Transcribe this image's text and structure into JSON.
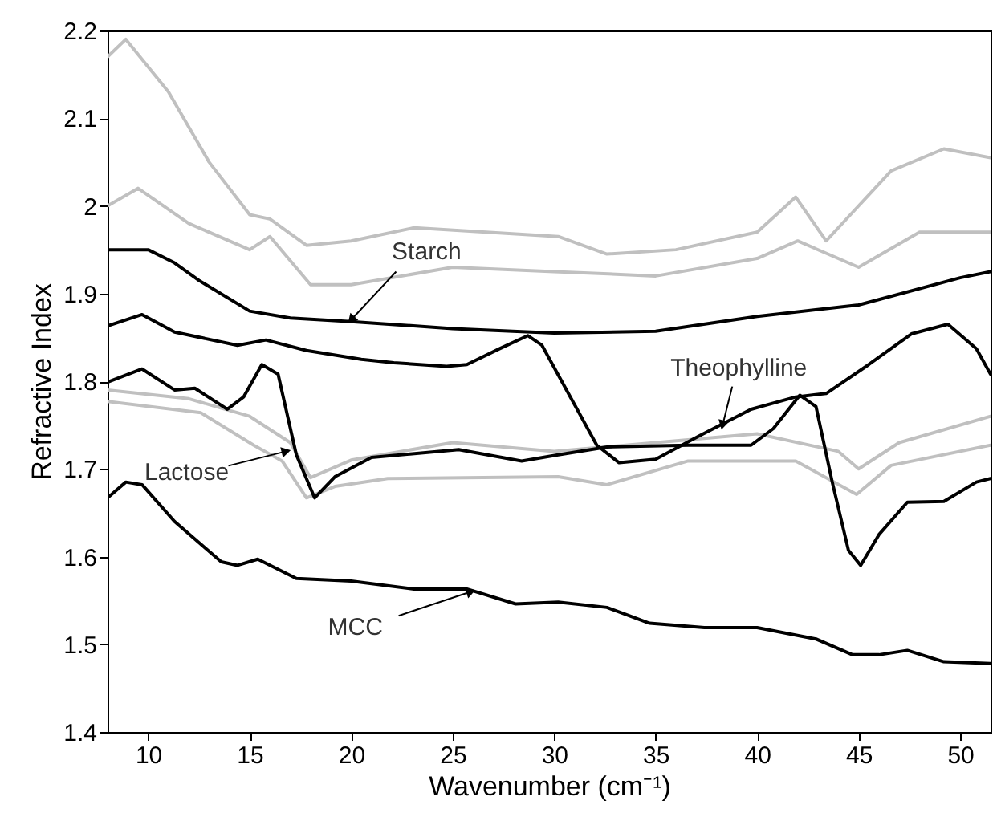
{
  "chart_data": {
    "type": "line",
    "xlabel": "Wavenumber (cm⁻¹)",
    "ylabel": "Refractive Index",
    "xlim": [
      8,
      51.5
    ],
    "ylim": [
      1.4,
      2.2
    ],
    "xticks": [
      10,
      15,
      20,
      25,
      30,
      35,
      40,
      45,
      50
    ],
    "yticks": [
      1.4,
      1.5,
      1.6,
      1.7,
      1.8,
      1.9,
      2,
      2.1,
      2.2
    ],
    "grid": false,
    "line_style": "solid",
    "marker": "none",
    "series": [
      {
        "color": "#c0c0c0",
        "x": [
          8,
          8.9,
          11,
          13,
          15,
          16,
          17.8,
          20,
          23.1,
          30.2,
          32.6,
          36,
          40,
          41.9,
          43.4,
          45,
          46.6,
          49.2,
          51.5
        ],
        "values": [
          2.17,
          2.19,
          2.13,
          2.05,
          1.99,
          1.985,
          1.955,
          1.96,
          1.975,
          1.965,
          1.945,
          1.95,
          1.97,
          2.01,
          1.96,
          2.0,
          2.04,
          2.065,
          2.055
        ]
      },
      {
        "color": "#c0c0c0",
        "x": [
          8,
          9.5,
          12,
          15,
          16,
          18,
          20,
          25,
          30,
          35,
          40,
          42,
          45,
          48,
          51.5
        ],
        "values": [
          2.0,
          2.02,
          1.98,
          1.95,
          1.965,
          1.91,
          1.91,
          1.93,
          1.925,
          1.92,
          1.94,
          1.96,
          1.93,
          1.97,
          1.97
        ]
      },
      {
        "color": "#c0c0c0",
        "x": [
          8,
          12,
          15,
          17,
          18,
          20,
          25,
          30,
          35,
          40,
          44,
          45,
          47,
          51.5
        ],
        "values": [
          1.79,
          1.78,
          1.76,
          1.73,
          1.69,
          1.71,
          1.73,
          1.72,
          1.73,
          1.74,
          1.72,
          1.7,
          1.73,
          1.76
        ]
      },
      {
        "color": "#c0c0c0",
        "x": [
          8,
          12.6,
          15.2,
          16.6,
          17.8,
          19.2,
          21.8,
          30.2,
          32.6,
          36.6,
          41.9,
          44.9,
          46.6,
          51.5
        ],
        "values": [
          1.777,
          1.764,
          1.727,
          1.709,
          1.667,
          1.68,
          1.689,
          1.691,
          1.682,
          1.709,
          1.709,
          1.671,
          1.704,
          1.727
        ]
      },
      {
        "color": "#000000",
        "x": [
          8,
          10,
          11.3,
          12.5,
          15,
          17,
          20,
          25,
          30,
          35,
          40,
          45,
          50,
          51.5
        ],
        "values": [
          1.95,
          1.95,
          1.935,
          1.915,
          1.88,
          1.872,
          1.868,
          1.86,
          1.855,
          1.857,
          1.874,
          1.887,
          1.918,
          1.925
        ]
      },
      {
        "color": "#000000",
        "x": [
          8,
          9.7,
          11.3,
          14.4,
          15.8,
          17.8,
          20.5,
          22.1,
          24.7,
          25.7,
          27.3,
          28.7,
          29.4,
          30.8,
          32.1,
          33.2,
          35,
          37.1,
          39.7,
          41.9,
          43.4,
          45.5,
          47.6,
          49.4,
          50.8,
          51.5
        ],
        "values": [
          1.863,
          1.876,
          1.856,
          1.841,
          1.847,
          1.835,
          1.825,
          1.821,
          1.817,
          1.819,
          1.837,
          1.852,
          1.841,
          1.782,
          1.727,
          1.707,
          1.711,
          1.737,
          1.768,
          1.782,
          1.786,
          1.819,
          1.854,
          1.865,
          1.837,
          1.808
        ]
      },
      {
        "color": "#000000",
        "x": [
          8,
          9.7,
          11.3,
          12.3,
          13.9,
          14.7,
          15.6,
          16.4,
          17.3,
          18.2,
          19.2,
          21,
          25.3,
          28.4,
          30.2,
          32.6,
          36.6,
          39.7,
          40.8,
          42.1,
          42.9,
          43.7,
          44.5,
          45.1,
          46,
          47.4,
          49.2,
          50.8,
          51.5
        ],
        "values": [
          1.799,
          1.814,
          1.79,
          1.792,
          1.768,
          1.782,
          1.819,
          1.808,
          1.716,
          1.667,
          1.691,
          1.713,
          1.722,
          1.709,
          1.716,
          1.725,
          1.727,
          1.727,
          1.746,
          1.784,
          1.771,
          1.685,
          1.607,
          1.59,
          1.625,
          1.662,
          1.663,
          1.685,
          1.689
        ]
      },
      {
        "color": "#000000",
        "x": [
          8,
          8.9,
          9.7,
          11.3,
          13.6,
          14.4,
          15.4,
          17.3,
          20,
          23.1,
          25.7,
          28.1,
          30.2,
          32.6,
          34.7,
          37.4,
          40,
          42.9,
          44.7,
          46,
          47.4,
          49.2,
          51.5
        ],
        "values": [
          1.667,
          1.685,
          1.682,
          1.64,
          1.594,
          1.59,
          1.597,
          1.575,
          1.572,
          1.563,
          1.563,
          1.546,
          1.548,
          1.542,
          1.524,
          1.519,
          1.519,
          1.506,
          1.488,
          1.488,
          1.493,
          1.48,
          1.478
        ]
      }
    ],
    "annotations": [
      {
        "text": "Starch",
        "x": 20,
        "y": 1.87
      },
      {
        "text": "Lactose",
        "x": 16.8,
        "y": 1.72
      },
      {
        "text": "MCC",
        "x": 25.9,
        "y": 1.56
      },
      {
        "text": "Theophylline",
        "x": 38.3,
        "y": 1.75
      }
    ]
  }
}
